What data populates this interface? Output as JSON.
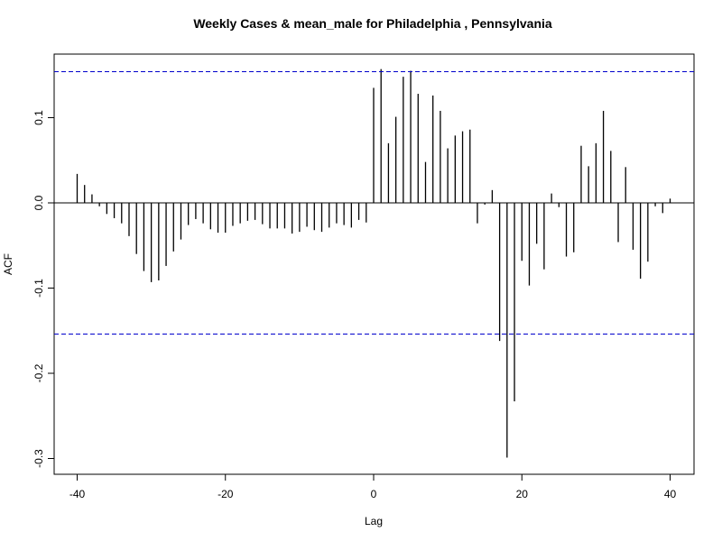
{
  "chart_data": {
    "type": "bar",
    "title": "Weekly Cases & mean_male for Philadelphia , Pennsylvania",
    "xlabel": "Lag",
    "ylabel": "ACF",
    "xlim": [
      -40,
      40
    ],
    "ylim": [
      -0.3,
      0.15
    ],
    "x_ticks": [
      -40,
      -20,
      0,
      20,
      40
    ],
    "y_ticks": [
      -0.3,
      -0.2,
      -0.1,
      0.0,
      0.1
    ],
    "y_tick_labels": [
      "-0.3",
      "-0.2",
      "-0.1",
      "0.0",
      "0.1"
    ],
    "x_tick_labels": [
      "-40",
      "-20",
      "0",
      "20",
      "40"
    ],
    "confidence_bound": 0.154,
    "confidence_color": "#0000cc",
    "bar_color": "#000000",
    "lags": [
      -40,
      -39,
      -38,
      -37,
      -36,
      -35,
      -34,
      -33,
      -32,
      -31,
      -30,
      -29,
      -28,
      -27,
      -26,
      -25,
      -24,
      -23,
      -22,
      -21,
      -20,
      -19,
      -18,
      -17,
      -16,
      -15,
      -14,
      -13,
      -12,
      -11,
      -10,
      -9,
      -8,
      -7,
      -6,
      -5,
      -4,
      -3,
      -2,
      -1,
      0,
      1,
      2,
      3,
      4,
      5,
      6,
      7,
      8,
      9,
      10,
      11,
      12,
      13,
      14,
      15,
      16,
      17,
      18,
      19,
      20,
      21,
      22,
      23,
      24,
      25,
      26,
      27,
      28,
      29,
      30,
      31,
      32,
      33,
      34,
      35,
      36,
      37,
      38,
      39,
      40
    ],
    "values": [
      0.034,
      0.021,
      0.01,
      -0.004,
      -0.013,
      -0.018,
      -0.024,
      -0.039,
      -0.06,
      -0.08,
      -0.093,
      -0.091,
      -0.074,
      -0.057,
      -0.043,
      -0.026,
      -0.019,
      -0.024,
      -0.031,
      -0.035,
      -0.035,
      -0.027,
      -0.024,
      -0.021,
      -0.02,
      -0.025,
      -0.03,
      -0.03,
      -0.03,
      -0.036,
      -0.034,
      -0.028,
      -0.032,
      -0.034,
      -0.029,
      -0.024,
      -0.026,
      -0.029,
      -0.02,
      -0.023,
      0.135,
      0.157,
      0.07,
      0.101,
      0.148,
      0.155,
      0.128,
      0.048,
      0.126,
      0.108,
      0.064,
      0.079,
      0.084,
      0.086,
      -0.024,
      -0.002,
      0.015,
      -0.162,
      -0.299,
      -0.233,
      -0.068,
      -0.097,
      -0.048,
      -0.078,
      0.011,
      -0.005,
      -0.063,
      -0.058,
      0.067,
      0.043,
      0.07,
      0.108,
      0.061,
      -0.046,
      0.042,
      -0.055,
      -0.089,
      -0.069,
      -0.004,
      -0.012,
      0.005
    ]
  }
}
